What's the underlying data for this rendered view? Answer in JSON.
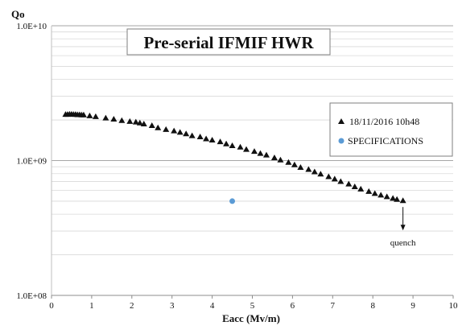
{
  "chart_data": {
    "type": "scatter",
    "title": "Pre-serial IFMIF HWR",
    "xlabel": "Eacc (Mv/m)",
    "ylabel": "Qo",
    "xlim": [
      0,
      10
    ],
    "ylim": [
      100000000.0,
      10000000000.0
    ],
    "yscale": "log",
    "xticks": [
      "0",
      "1",
      "2",
      "3",
      "4",
      "5",
      "6",
      "7",
      "8",
      "9",
      "10"
    ],
    "yticks": [
      "1.0E+08",
      "1.0E+09",
      "1.0E+10"
    ],
    "grid": "horizontal minor and major",
    "legend_position": "right",
    "colors": {
      "measured": "#111111",
      "spec": "#5b9bd5",
      "grid": "#d9d9d9",
      "axis": "#bfbfbf"
    },
    "series": [
      {
        "name": "18/11/2016 10h48",
        "marker": "triangle",
        "x": [
          0.35,
          0.4,
          0.45,
          0.5,
          0.55,
          0.6,
          0.65,
          0.7,
          0.75,
          0.8,
          0.95,
          1.1,
          1.35,
          1.55,
          1.75,
          1.95,
          2.1,
          2.2,
          2.3,
          2.5,
          2.65,
          2.85,
          3.05,
          3.2,
          3.35,
          3.5,
          3.7,
          3.85,
          4.0,
          4.2,
          4.35,
          4.5,
          4.7,
          4.85,
          5.05,
          5.2,
          5.35,
          5.55,
          5.7,
          5.9,
          6.05,
          6.2,
          6.4,
          6.55,
          6.7,
          6.9,
          7.05,
          7.2,
          7.4,
          7.55,
          7.7,
          7.9,
          8.05,
          8.2,
          8.35,
          8.5,
          8.6,
          8.75
        ],
        "y": [
          2200000000.0,
          2200000000.0,
          2210000000.0,
          2210000000.0,
          2200000000.0,
          2200000000.0,
          2190000000.0,
          2190000000.0,
          2180000000.0,
          2180000000.0,
          2150000000.0,
          2120000000.0,
          2070000000.0,
          2030000000.0,
          1980000000.0,
          1950000000.0,
          1930000000.0,
          1900000000.0,
          1870000000.0,
          1820000000.0,
          1750000000.0,
          1700000000.0,
          1660000000.0,
          1620000000.0,
          1580000000.0,
          1530000000.0,
          1500000000.0,
          1450000000.0,
          1420000000.0,
          1380000000.0,
          1330000000.0,
          1290000000.0,
          1260000000.0,
          1210000000.0,
          1170000000.0,
          1130000000.0,
          1100000000.0,
          1050000000.0,
          1010000000.0,
          970000000.0,
          930000000.0,
          890000000.0,
          860000000.0,
          825000000.0,
          795000000.0,
          760000000.0,
          730000000.0,
          700000000.0,
          670000000.0,
          640000000.0,
          615000000.0,
          590000000.0,
          570000000.0,
          555000000.0,
          540000000.0,
          525000000.0,
          515000000.0,
          505000000.0
        ]
      },
      {
        "name": "SPECIFICATIONS",
        "marker": "circle",
        "x": [
          4.5
        ],
        "y": [
          500000000.0
        ]
      }
    ],
    "annotations": [
      {
        "text": "quench",
        "x": 8.75,
        "y": 505000000.0
      }
    ]
  }
}
